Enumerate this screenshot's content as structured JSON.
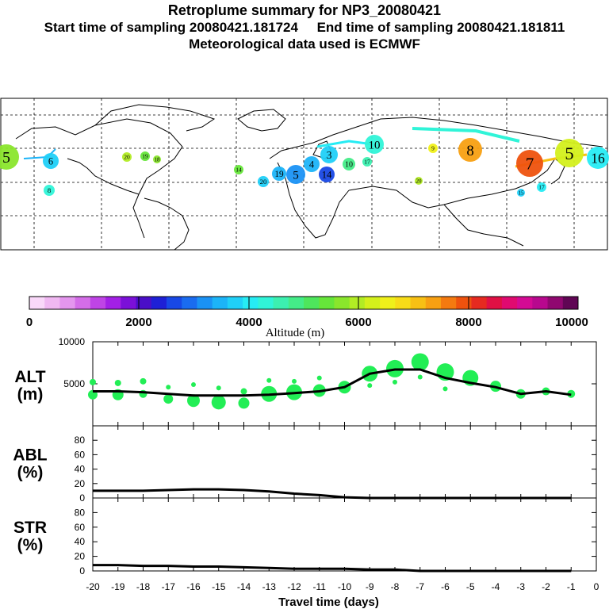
{
  "header": {
    "title": "Retroplume summary for NP3_20080421",
    "sampling": "Start time of sampling 20080421.181724     End time of sampling 20080421.181811",
    "met": "Meteorological data used is ECMWF"
  },
  "colors": {
    "altitude_scale": [
      "#f9d8f9",
      "#f0b8f2",
      "#e496ee",
      "#d46de8",
      "#bf44e6",
      "#a320e6",
      "#7b10d8",
      "#4a0ec8",
      "#1e20d6",
      "#1848e6",
      "#1a6cf0",
      "#1a92f5",
      "#1cb4f8",
      "#20d0f8",
      "#26ecf4",
      "#30f4d8",
      "#3cf0b0",
      "#44ec88",
      "#4ee65c",
      "#66e63a",
      "#8ae62c",
      "#b2ec24",
      "#d4f01c",
      "#f0f01a",
      "#f8dc18",
      "#f8c014",
      "#f8a012",
      "#f47a10",
      "#ee520e",
      "#e62a20",
      "#e01044",
      "#e00a70",
      "#d40a94",
      "#b8088e",
      "#900870",
      "#600654"
    ],
    "alt_bubble": "#22ee55"
  },
  "map": {
    "labels": [
      {
        "text": "5",
        "color": "#8ae62c"
      },
      {
        "text": "6",
        "color": "#20d0f8"
      },
      {
        "text": "8",
        "color": "#30f4d8"
      },
      {
        "text": "20",
        "color": "#b2ec24"
      },
      {
        "text": "19",
        "color": "#66e63a"
      },
      {
        "text": "18",
        "color": "#8ae62c"
      },
      {
        "text": "14",
        "color": "#66e63a"
      },
      {
        "text": "20",
        "color": "#20d0f8"
      },
      {
        "text": "19",
        "color": "#1cb4f8"
      },
      {
        "text": "5",
        "color": "#1a92f5"
      },
      {
        "text": "4",
        "color": "#1cb4f8"
      },
      {
        "text": "3",
        "color": "#20d0f8"
      },
      {
        "text": "14",
        "color": "#1848e6"
      },
      {
        "text": "10",
        "color": "#44ec88"
      },
      {
        "text": "17",
        "color": "#3cf0b0"
      },
      {
        "text": "10",
        "color": "#30f4d8"
      },
      {
        "text": "9",
        "color": "#f0f01a"
      },
      {
        "text": "8",
        "color": "#f8a012"
      },
      {
        "text": "7",
        "color": "#ee520e"
      },
      {
        "text": "5",
        "color": "#d4f01c"
      },
      {
        "text": "16",
        "color": "#26ecf4"
      },
      {
        "text": "15",
        "color": "#20d0f8"
      },
      {
        "text": "17",
        "color": "#26ecf4"
      },
      {
        "text": "20",
        "color": "#b2ec24"
      }
    ]
  },
  "colorbar": {
    "ticks": [
      "0",
      "2000",
      "4000",
      "6000",
      "8000",
      "10000"
    ],
    "label": "Altitude (m)"
  },
  "chart_data": [
    {
      "type": "line",
      "panel": "ALT",
      "ylabel": "ALT",
      "yunit": "(m)",
      "ylim": [
        0,
        10000
      ],
      "yticks": [
        5000,
        10000
      ],
      "x": [
        -20,
        -19,
        -18,
        -17,
        -16,
        -15,
        -14,
        -13,
        -12,
        -11,
        -10,
        -9,
        -8,
        -7,
        -6,
        -5,
        -4,
        -3,
        -2,
        -1
      ],
      "median": [
        4100,
        4100,
        4000,
        3800,
        3600,
        3600,
        3600,
        3700,
        3900,
        4100,
        4600,
        6200,
        6700,
        6700,
        5700,
        5100,
        4600,
        3800,
        4100,
        3700
      ],
      "bubbles": [
        {
          "x": -20,
          "y": 3700,
          "r": 6
        },
        {
          "x": -20,
          "y": 5200,
          "r": 4
        },
        {
          "x": -19,
          "y": 3700,
          "r": 7
        },
        {
          "x": -19,
          "y": 5100,
          "r": 4
        },
        {
          "x": -18,
          "y": 3800,
          "r": 5
        },
        {
          "x": -18,
          "y": 5300,
          "r": 4
        },
        {
          "x": -17,
          "y": 3200,
          "r": 6
        },
        {
          "x": -17,
          "y": 4600,
          "r": 3
        },
        {
          "x": -16,
          "y": 3000,
          "r": 8
        },
        {
          "x": -16,
          "y": 4900,
          "r": 3
        },
        {
          "x": -15,
          "y": 2800,
          "r": 9
        },
        {
          "x": -15,
          "y": 4500,
          "r": 3
        },
        {
          "x": -14,
          "y": 2700,
          "r": 7
        },
        {
          "x": -14,
          "y": 4100,
          "r": 4
        },
        {
          "x": -13,
          "y": 3800,
          "r": 10
        },
        {
          "x": -13,
          "y": 5400,
          "r": 3
        },
        {
          "x": -12,
          "y": 4000,
          "r": 10
        },
        {
          "x": -12,
          "y": 5300,
          "r": 3
        },
        {
          "x": -11,
          "y": 4200,
          "r": 8
        },
        {
          "x": -11,
          "y": 5700,
          "r": 3
        },
        {
          "x": -10,
          "y": 4600,
          "r": 8
        },
        {
          "x": -9,
          "y": 6200,
          "r": 10
        },
        {
          "x": -9,
          "y": 4800,
          "r": 3
        },
        {
          "x": -8,
          "y": 6800,
          "r": 11
        },
        {
          "x": -8,
          "y": 5200,
          "r": 3
        },
        {
          "x": -7,
          "y": 7600,
          "r": 11
        },
        {
          "x": -7,
          "y": 5800,
          "r": 3
        },
        {
          "x": -6,
          "y": 6400,
          "r": 11
        },
        {
          "x": -6,
          "y": 4400,
          "r": 3
        },
        {
          "x": -5,
          "y": 5700,
          "r": 10
        },
        {
          "x": -4,
          "y": 4700,
          "r": 7
        },
        {
          "x": -3,
          "y": 3800,
          "r": 6
        },
        {
          "x": -2,
          "y": 4100,
          "r": 5
        },
        {
          "x": -1,
          "y": 3800,
          "r": 5
        }
      ]
    },
    {
      "type": "line",
      "panel": "ABL",
      "ylabel": "ABL",
      "yunit": "(%)",
      "ylim": [
        0,
        100
      ],
      "yticks": [
        0,
        20,
        40,
        60,
        80
      ],
      "x": [
        -20,
        -19,
        -18,
        -17,
        -16,
        -15,
        -14,
        -13,
        -12,
        -11,
        -10,
        -9,
        -8,
        -7,
        -6,
        -5,
        -4,
        -3,
        -2,
        -1
      ],
      "values": [
        10,
        10,
        10,
        11,
        12,
        12,
        11,
        9,
        6,
        4,
        1,
        0,
        0,
        0,
        0,
        0,
        0,
        0,
        0,
        0
      ]
    },
    {
      "type": "line",
      "panel": "STR",
      "ylabel": "STR",
      "yunit": "(%)",
      "ylim": [
        0,
        100
      ],
      "yticks": [
        0,
        20,
        40,
        60,
        80
      ],
      "x": [
        -20,
        -19,
        -18,
        -17,
        -16,
        -15,
        -14,
        -13,
        -12,
        -11,
        -10,
        -9,
        -8,
        -7,
        -6,
        -5,
        -4,
        -3,
        -2,
        -1
      ],
      "values": [
        8,
        8,
        7,
        7,
        6,
        6,
        5,
        4,
        3,
        3,
        3,
        2,
        2,
        0,
        0,
        0,
        0,
        0,
        0,
        0
      ],
      "xticks": [
        -20,
        -19,
        -18,
        -17,
        -16,
        -15,
        -14,
        -13,
        -12,
        -11,
        -10,
        -9,
        -8,
        -7,
        -6,
        -5,
        -4,
        -3,
        -2,
        -1,
        0
      ],
      "xlabel": "Travel time (days)"
    }
  ]
}
